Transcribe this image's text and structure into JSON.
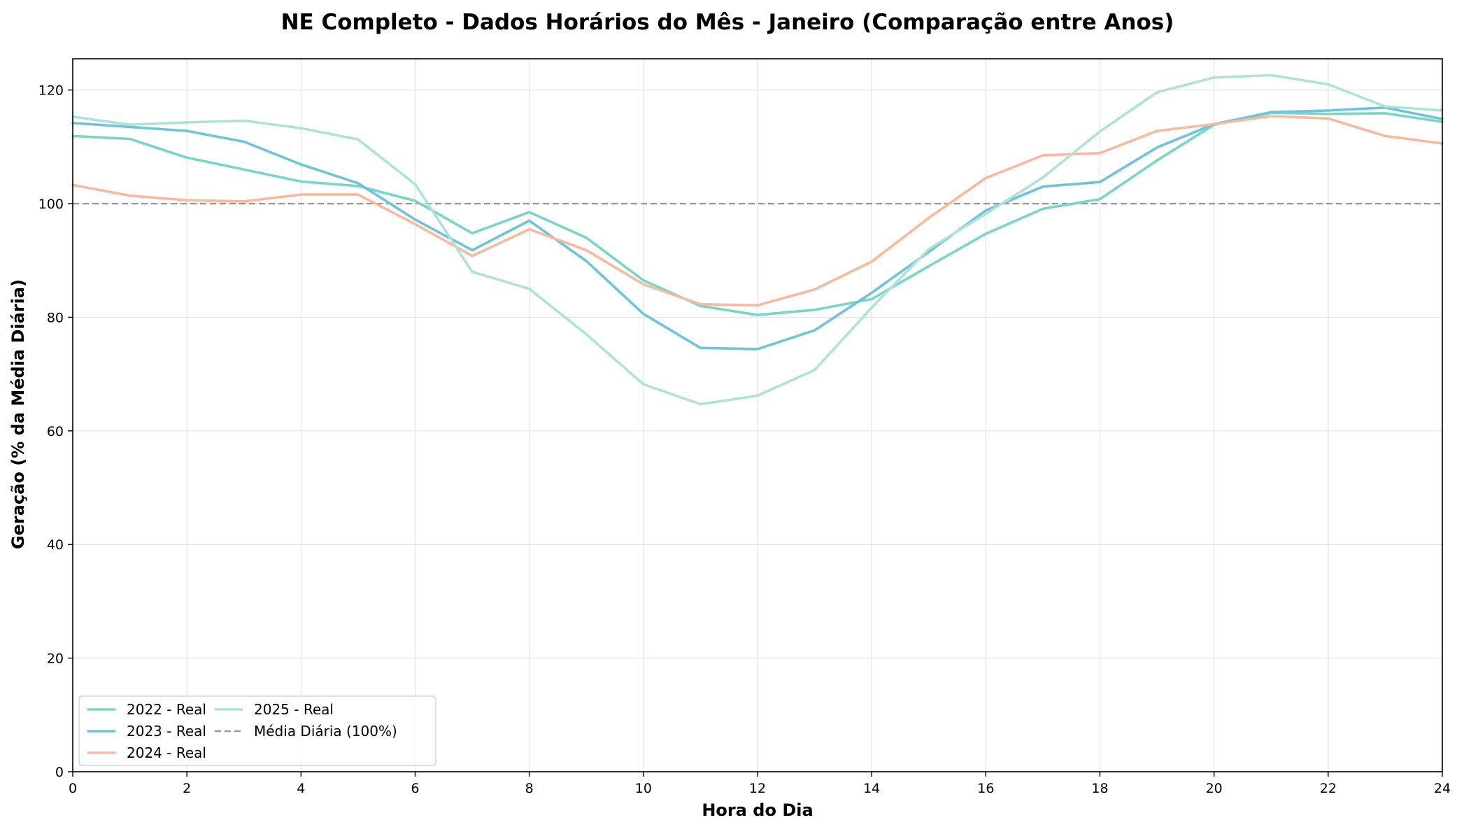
{
  "chart_data": {
    "type": "line",
    "title": "NE Completo - Dados Horários do Mês - Janeiro (Comparação entre Anos)",
    "xlabel": "Hora do Dia",
    "ylabel": "Geração (% da Média Diária)",
    "xlim": [
      0,
      24
    ],
    "ylim": [
      0,
      125.5
    ],
    "xticks": [
      0,
      2,
      4,
      6,
      8,
      10,
      12,
      14,
      16,
      18,
      20,
      22,
      24
    ],
    "yticks": [
      0,
      20,
      40,
      60,
      80,
      100,
      120
    ],
    "grid": true,
    "legend_position": "lower-left",
    "x": [
      0,
      1,
      2,
      3,
      4,
      5,
      6,
      7,
      8,
      9,
      10,
      11,
      12,
      13,
      14,
      15,
      16,
      17,
      18,
      19,
      20,
      21,
      22,
      23,
      24
    ],
    "series": [
      {
        "name": "2022 - Real",
        "color": "#76d7c4",
        "values": [
          111.9,
          111.4,
          108.1,
          106.0,
          103.9,
          103.1,
          100.5,
          94.8,
          98.5,
          94.0,
          86.5,
          82.0,
          80.4,
          81.3,
          83.2,
          89.0,
          94.7,
          99.1,
          100.8,
          107.6,
          113.9,
          116.0,
          115.8,
          115.9,
          114.4
        ]
      },
      {
        "name": "2023 - Real",
        "color": "#6ec4d8",
        "values": [
          114.2,
          113.5,
          112.8,
          110.9,
          106.9,
          103.6,
          97.2,
          91.8,
          97.0,
          89.9,
          80.6,
          74.6,
          74.4,
          77.7,
          84.3,
          91.5,
          98.8,
          103.0,
          103.8,
          109.9,
          114.0,
          116.1,
          116.4,
          116.9,
          114.9
        ]
      },
      {
        "name": "2024 - Real",
        "color": "#f9b99e",
        "values": [
          103.3,
          101.4,
          100.6,
          100.4,
          101.6,
          101.6,
          96.4,
          90.8,
          95.5,
          91.8,
          85.8,
          82.3,
          82.1,
          84.9,
          89.8,
          97.5,
          104.5,
          108.5,
          108.9,
          112.8,
          114.0,
          115.4,
          115.0,
          111.9,
          110.6
        ]
      },
      {
        "name": "2025 - Real",
        "color": "#afe3d5",
        "values": [
          115.3,
          113.9,
          114.3,
          114.6,
          113.3,
          111.3,
          103.4,
          88.0,
          85.0,
          77.0,
          68.2,
          64.7,
          66.2,
          70.7,
          81.7,
          92.0,
          98.2,
          104.6,
          112.7,
          119.6,
          122.2,
          122.6,
          121.0,
          117.1,
          116.4
        ]
      }
    ],
    "reference_line": {
      "name": "Média Diária (100%)",
      "value": 100,
      "color": "#999999",
      "style": "dashed"
    }
  }
}
